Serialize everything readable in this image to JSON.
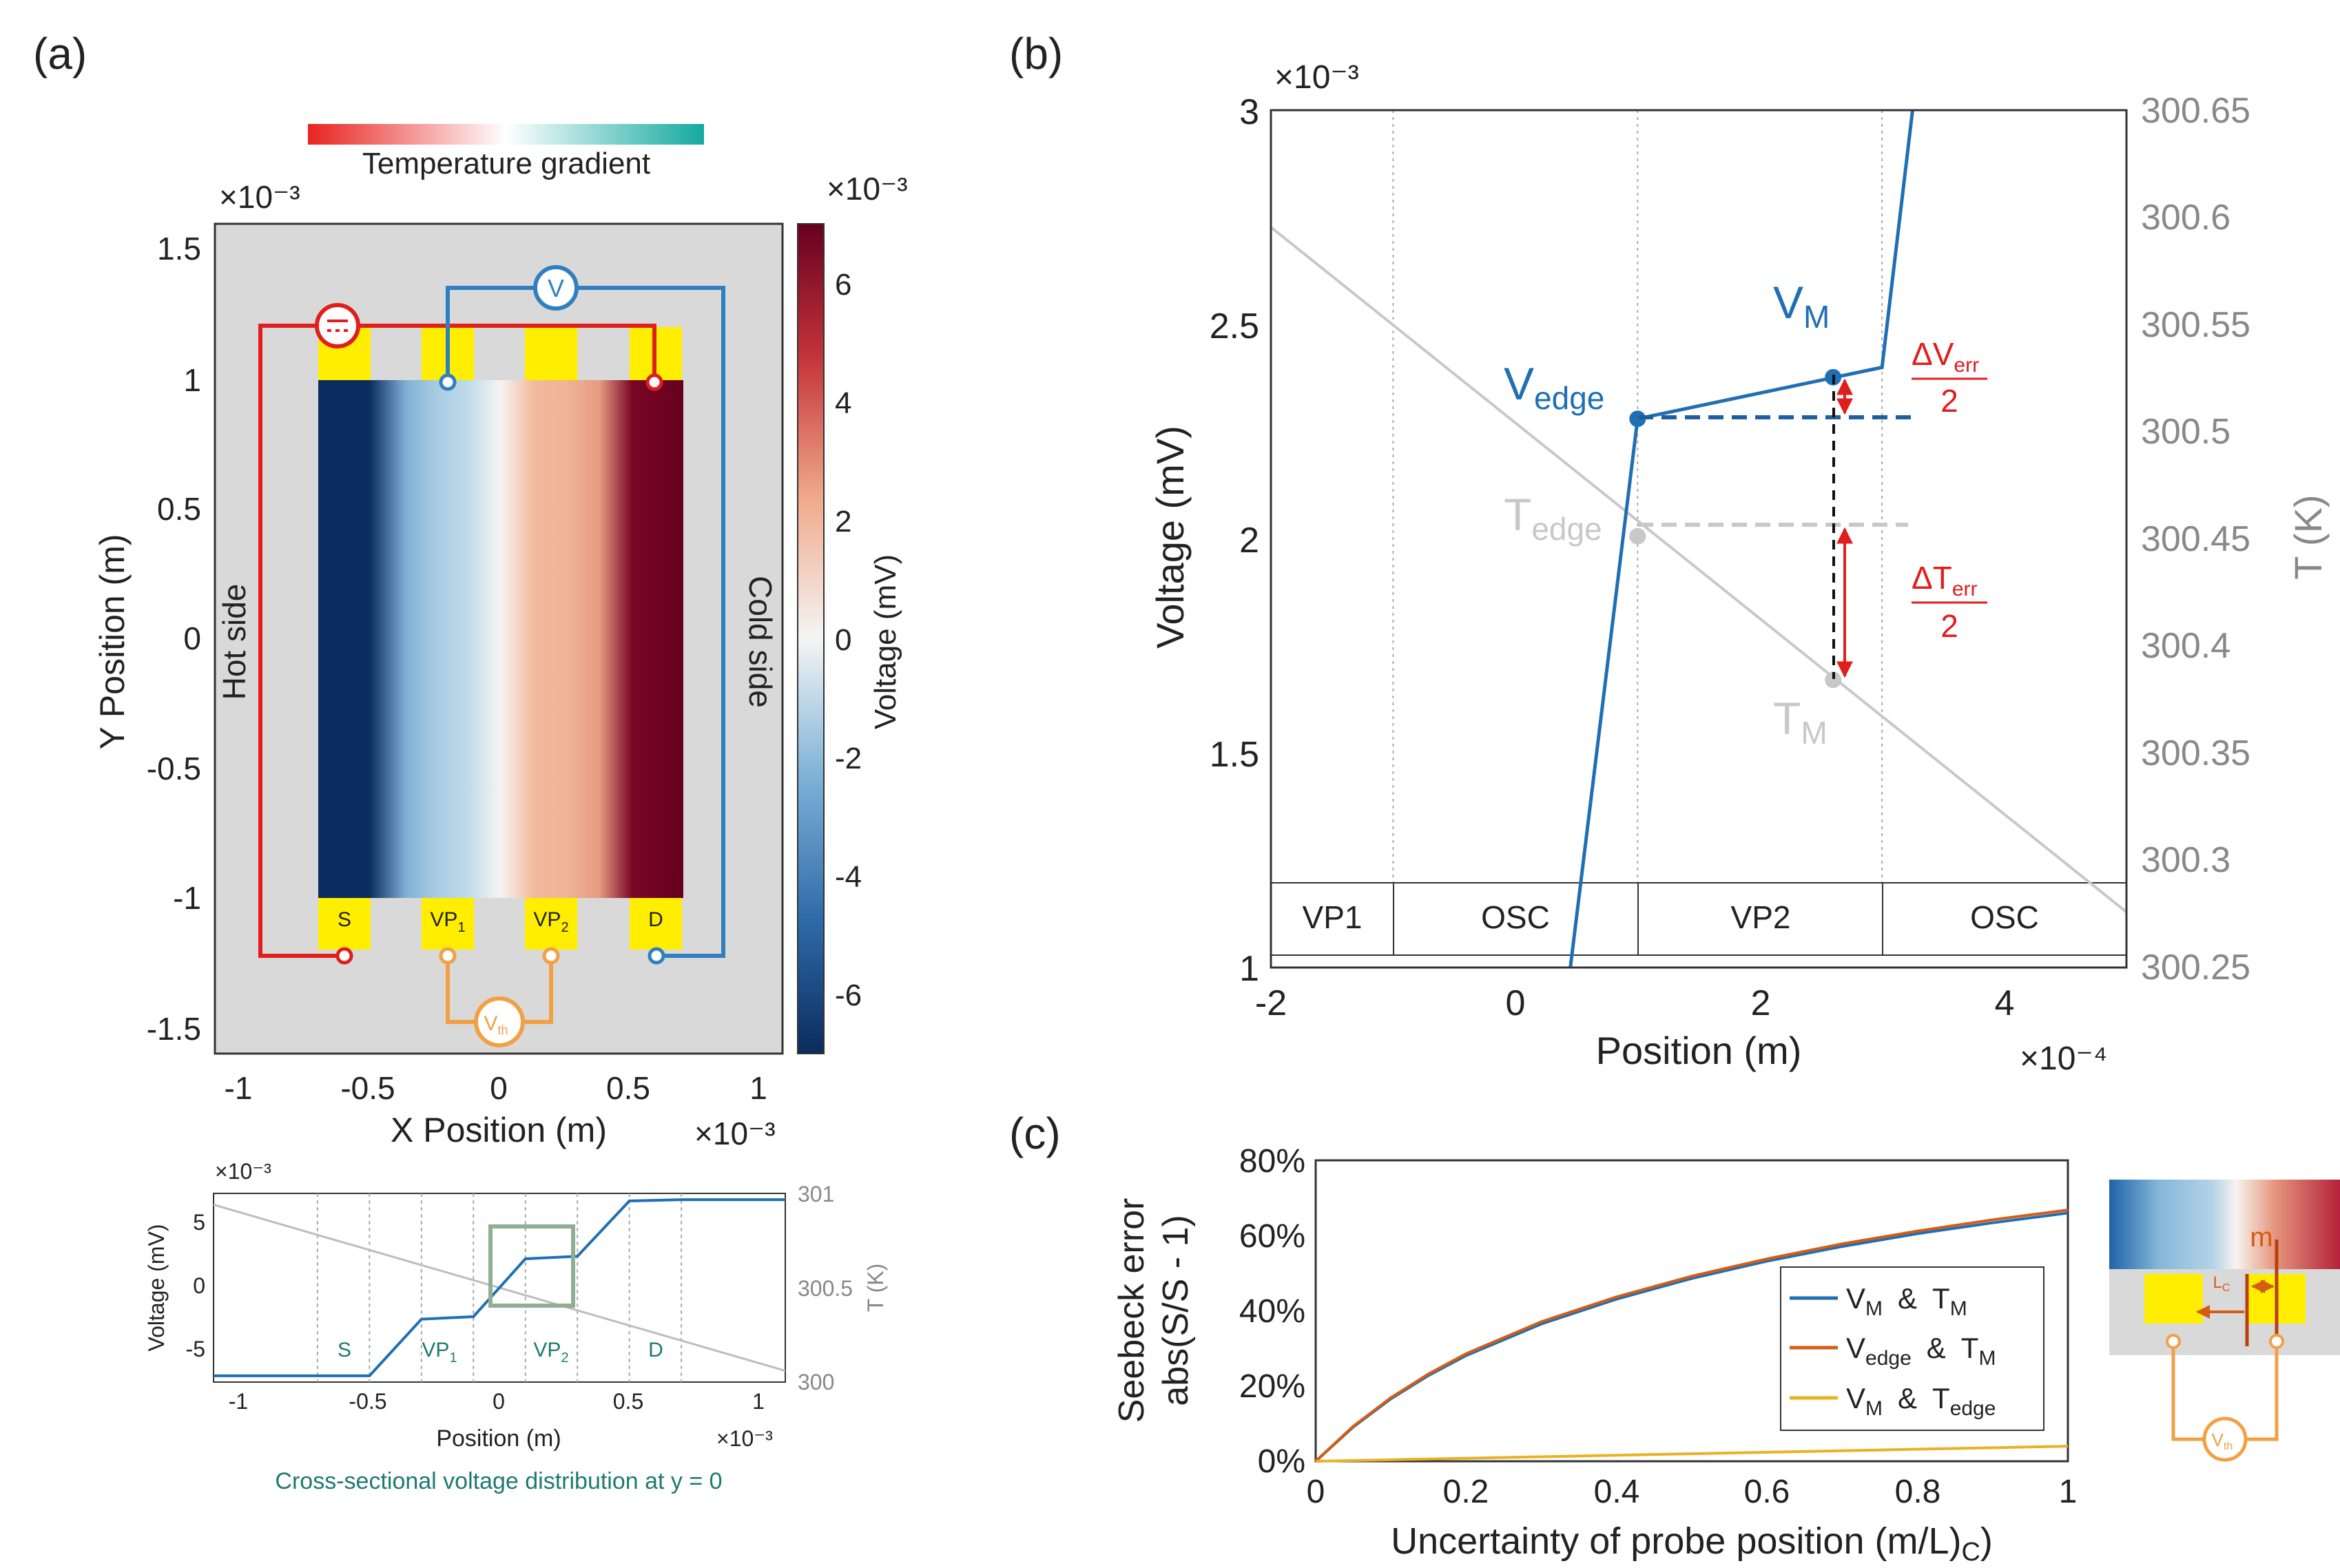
{
  "panel_labels": {
    "a": "(a)",
    "b": "(b)",
    "c": "(c)"
  },
  "colors": {
    "blue": "#1f6fb4",
    "orange": "#d45c14",
    "yellow": "#e9b225",
    "red": "#e01e1e",
    "probe_orange": "#f2a043",
    "gray": "#bdbdbd",
    "teal": "#1e7a6e",
    "box_green": "#8fae94",
    "pad_yellow": "#ffee00",
    "panel_bg": "#d9d9d9"
  },
  "panel_a": {
    "gradient_label": "Temperature gradient",
    "x_exponent": "×10⁻³",
    "y_exponent": "×10⁻³",
    "cbar_exponent": "×10⁻³",
    "xlabel": "X Position (m)",
    "ylabel": "Y Position (m)",
    "cbar_label": "Voltage (mV)",
    "hot_side": "Hot side",
    "cold_side": "Cold side",
    "x_ticks": [
      "-1",
      "-0.5",
      "0",
      "0.5",
      "1"
    ],
    "y_ticks": [
      "1.5",
      "1",
      "0.5",
      "0",
      "-0.5",
      "-1",
      "-1.5"
    ],
    "cbar_ticks": [
      "6",
      "4",
      "2",
      "0",
      "-2",
      "-4",
      "-6"
    ],
    "pads": [
      "S",
      "VP",
      "VP",
      "D"
    ],
    "pad_subs": [
      "",
      "1",
      "2",
      ""
    ],
    "voltmeter": "V",
    "vth": "V",
    "vth_sub": "th"
  },
  "panel_a_bottom": {
    "x_exponent": "×10⁻³",
    "y_exponent": "×10⁻³",
    "xlabel": "Position (m)",
    "ylabel": "Voltage (mV)",
    "ylabel_right": "T (K)",
    "caption": "Cross-sectional voltage distribution at y = 0",
    "x_ticks": [
      "-1",
      "-0.5",
      "0",
      "0.5",
      "1"
    ],
    "y_ticks": [
      "5",
      "0",
      "-5"
    ],
    "y2_ticks": [
      "301",
      "300.5",
      "300"
    ],
    "region_labels": [
      "S",
      "VP",
      "VP",
      "D"
    ],
    "region_subs": [
      "",
      "1",
      "2",
      ""
    ]
  },
  "chart_data": [
    {
      "type": "heatmap",
      "title": "",
      "xlabel": "X Position (m)",
      "ylabel": "Y Position (m)",
      "xlim": [
        -1.1,
        1.1
      ],
      "ylim": [
        -1.6,
        1.6
      ],
      "colorbar": {
        "label": "Voltage (mV)",
        "range": [
          -7,
          7
        ]
      },
      "voltage_profile_x": [
        -0.7,
        -0.5,
        -0.3,
        -0.1,
        0.1,
        0.3,
        0.5,
        0.7
      ],
      "voltage_profile_v": [
        -6.8,
        -6.8,
        -2.5,
        -2.3,
        2.3,
        2.5,
        6.9,
        6.9
      ]
    },
    {
      "type": "line",
      "xlabel": "Position (m)",
      "ylabel": "Voltage (mV)",
      "ylabel_right": "T (K)",
      "xlim": [
        -1.1,
        1.1
      ],
      "ylim": [
        -7.5,
        7.5
      ],
      "y2lim": [
        300,
        301
      ],
      "series": [
        {
          "name": "Voltage",
          "x": [
            -1.1,
            -0.5,
            -0.3,
            -0.1,
            0.1,
            0.3,
            0.5,
            0.7,
            1.1
          ],
          "y": [
            -7,
            -7,
            -2.5,
            -2.3,
            2.3,
            2.5,
            6.9,
            7,
            7
          ]
        },
        {
          "name": "Temperature",
          "x": [
            -1.1,
            1.1
          ],
          "y": [
            300.94,
            300.06
          ]
        }
      ]
    },
    {
      "type": "line",
      "title": "",
      "xlabel": "Position (m)",
      "ylabel": "Voltage (mV)",
      "ylabel_right": "T (K)",
      "x_exponent": "×10⁻⁴",
      "y_exponent": "×10⁻³",
      "xlim": [
        -2,
        5
      ],
      "ylim": [
        1,
        3
      ],
      "y2lim": [
        300.25,
        300.65
      ],
      "x_ticks": [
        "-2",
        "0",
        "2",
        "4"
      ],
      "y_ticks": [
        "3",
        "2.5",
        "2",
        "1.5",
        "1"
      ],
      "y2_ticks": [
        "300.65",
        "300.6",
        "300.55",
        "300.5",
        "300.45",
        "300.4",
        "300.35",
        "300.3",
        "300.25"
      ],
      "regions": [
        "VP1",
        "OSC",
        "VP2",
        "OSC"
      ],
      "series": [
        {
          "name": "Voltage",
          "x": [
            0.45,
            1,
            3,
            3.25
          ],
          "y": [
            1,
            2.28,
            2.4,
            3
          ]
        },
        {
          "name": "Temperature",
          "x": [
            -2,
            5
          ],
          "y": [
            300.5954,
            300.2759
          ]
        }
      ],
      "annotations": {
        "V_edge": {
          "label": "V",
          "sub": "edge",
          "x": 1,
          "y": 2.28
        },
        "V_M": {
          "label": "V",
          "sub": "M",
          "x": 2.6,
          "y": 2.377
        },
        "T_edge": {
          "label": "T",
          "sub": "edge",
          "x": 1,
          "y2": 300.4512
        },
        "T_M": {
          "label": "T",
          "sub": "M",
          "x": 2.6,
          "y2": 300.3842
        },
        "dV_err": {
          "num": "ΔV",
          "sub": "err",
          "den": "2"
        },
        "dT_err": {
          "num": "ΔT",
          "sub": "err",
          "den": "2"
        }
      }
    },
    {
      "type": "line",
      "xlabel": "Uncertainty of probe position (m/L)",
      "xlabel_sub": "C",
      "ylabel_1": "Seebeck error",
      "ylabel_2": "abs(S/S - 1)",
      "xlim": [
        0,
        1
      ],
      "ylim": [
        0,
        80
      ],
      "x_ticks": [
        "0",
        "0.2",
        "0.4",
        "0.6",
        "0.8",
        "1"
      ],
      "y_ticks": [
        "0%",
        "20%",
        "40%",
        "60%",
        "80%"
      ],
      "x": [
        0,
        0.05,
        0.1,
        0.15,
        0.2,
        0.3,
        0.4,
        0.5,
        0.6,
        0.7,
        0.8,
        0.9,
        1.0
      ],
      "series": [
        {
          "name": "V_M & T_M",
          "values": [
            0,
            9.1,
            16.6,
            22.8,
            28.1,
            36.5,
            43.1,
            48.6,
            53.2,
            57.1,
            60.5,
            63.4,
            66.0
          ]
        },
        {
          "name": "V_edge & T_M",
          "values": [
            0,
            9.3,
            16.9,
            23.2,
            28.6,
            37.1,
            43.7,
            49.2,
            53.8,
            57.8,
            61.2,
            64.2,
            66.8
          ]
        },
        {
          "name": "V_M & T_edge",
          "values": [
            0,
            0.2,
            0.4,
            0.6,
            0.8,
            1.2,
            1.6,
            2.0,
            2.4,
            2.8,
            3.2,
            3.6,
            4.0
          ]
        }
      ],
      "legend": [
        {
          "a": "V",
          "a_sub": "M",
          "b": "T",
          "b_sub": "M"
        },
        {
          "a": "V",
          "a_sub": "edge",
          "b": "T",
          "b_sub": "M"
        },
        {
          "a": "V",
          "a_sub": "M",
          "b": "T",
          "b_sub": "edge"
        }
      ],
      "legend_joiner": "&",
      "legend_position": "center-right"
    }
  ],
  "panel_c_inset": {
    "m": "m",
    "lc": "L",
    "lc_sub": "C",
    "vth": "V",
    "vth_sub": "th"
  }
}
